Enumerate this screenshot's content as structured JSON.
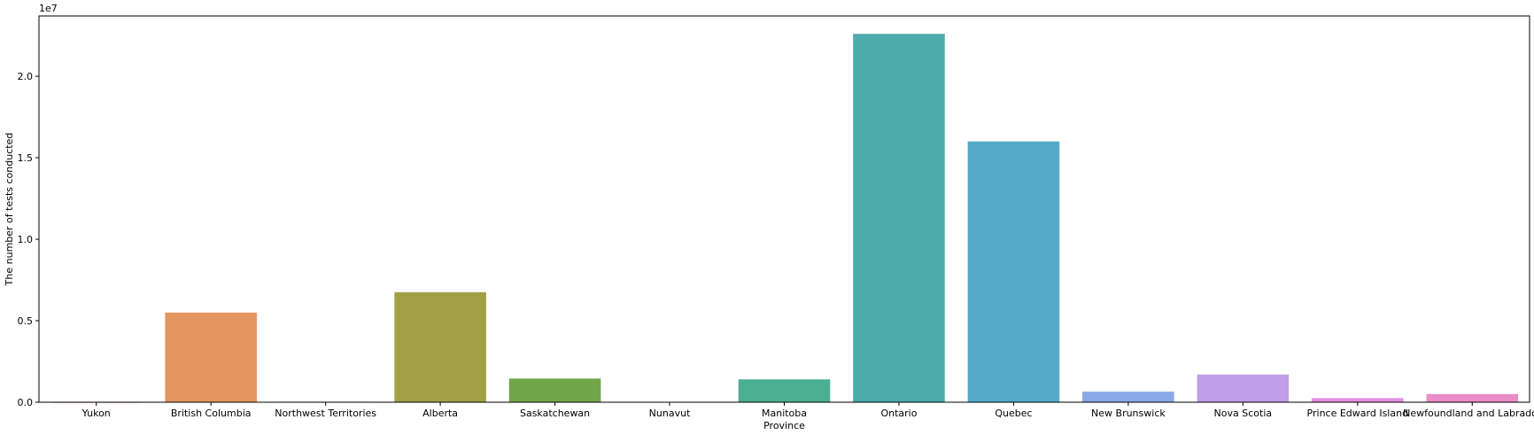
{
  "chart_data": {
    "type": "bar",
    "title": "",
    "xlabel": "Province",
    "ylabel": "The number of tests conducted",
    "offset_text": "1e7",
    "categories": [
      "Yukon",
      "British Columbia",
      "Northwest Territories",
      "Alberta",
      "Saskatchewan",
      "Nunavut",
      "Manitoba",
      "Ontario",
      "Quebec",
      "New Brunswick",
      "Nova Scotia",
      "Prince Edward Island",
      "Newfoundland and Labrador"
    ],
    "values": [
      8000,
      5500000,
      30000,
      6750000,
      1450000,
      25000,
      1400000,
      22600000,
      16000000,
      650000,
      1700000,
      250000,
      500000
    ],
    "colors": [
      "#e67f83",
      "#e5955f",
      "#c8a03c",
      "#a1a045",
      "#72a64a",
      "#45a865",
      "#4bae90",
      "#4dabad",
      "#52aac7",
      "#8aaae6",
      "#c19de7",
      "#e38ddf",
      "#e88dc7"
    ],
    "yticks": [
      0,
      5000000,
      10000000,
      15000000,
      20000000
    ],
    "yticklabels": [
      "0.0",
      "0.5",
      "1.0",
      "1.5",
      "2.0"
    ],
    "ylim": [
      0,
      23700000
    ],
    "grid": false,
    "legend": "none"
  }
}
